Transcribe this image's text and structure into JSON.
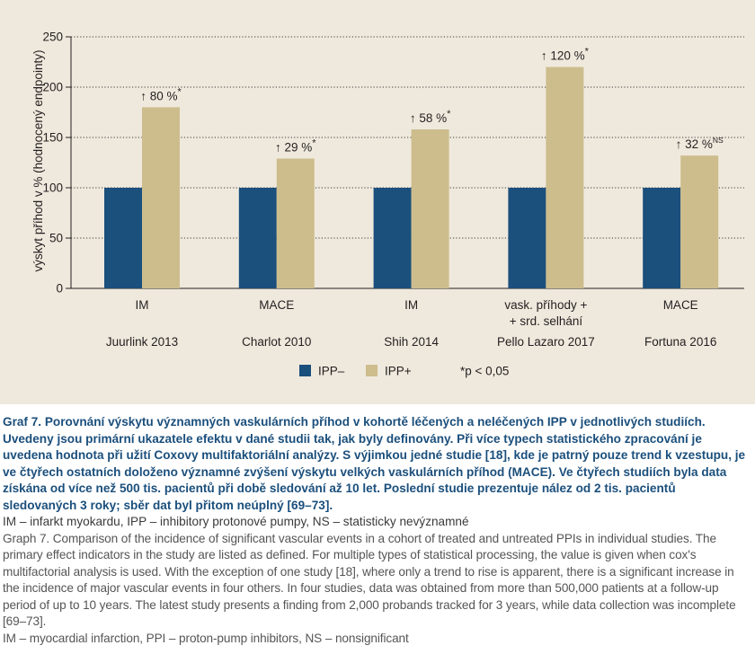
{
  "chart_data": {
    "type": "bar",
    "ylabel": "výskyt příhod v % (hodnocený endpointy)",
    "ylim": [
      0,
      250
    ],
    "yticks": [
      0,
      50,
      100,
      150,
      200,
      250
    ],
    "grid": true,
    "gridstyle": "dotted",
    "categories": [
      {
        "endpoint": [
          "IM"
        ],
        "study": "Juurlink 2013"
      },
      {
        "endpoint": [
          "MACE"
        ],
        "study": "Charlot 2010"
      },
      {
        "endpoint": [
          "IM"
        ],
        "study": "Shih 2014"
      },
      {
        "endpoint": [
          "vask. příhody +",
          "+ srd. selhání"
        ],
        "study": "Pello Lazaro 2017"
      },
      {
        "endpoint": [
          "MACE"
        ],
        "study": "Fortuna 2016"
      }
    ],
    "series": [
      {
        "name": "IPP–",
        "color": "#1b4f7c",
        "values": [
          100,
          100,
          100,
          100,
          100
        ]
      },
      {
        "name": "IPP+",
        "color": "#cdbd8d",
        "values": [
          180,
          129,
          158,
          220,
          132
        ]
      }
    ],
    "annotations": [
      {
        "text": "↑ 80 %",
        "sup": "*"
      },
      {
        "text": "↑ 29 %",
        "sup": "*"
      },
      {
        "text": "↑ 58 %",
        "sup": "*"
      },
      {
        "text": "↑ 120 %",
        "sup": "*"
      },
      {
        "text": "↑ 32 %",
        "sup": "NS"
      }
    ],
    "legend_note": "*p < 0,05",
    "legend_position": "bottom-center"
  },
  "caption": {
    "bold": "Graf 7. Porovnání výskytu významných vaskulárních příhod v kohortě léčených a neléčených IPP v jednotlivých studiích. Uvedeny jsou primární ukazatele efektu v dané studii tak, jak byly definovány. Při více typech statistického zpracování je uvedena hodnota při užití Coxovy multifaktoriální analýzy. S výjimkou jedné studie [18], kde je patrný pouze trend k vzestupu, je ve čtyřech ostatních doloženo významné zvýšení výskytu velkých vaskulárních příhod (MACE). Ve čtyřech studiích byla data získána od více než 500 tis. pacientů při době sledování až 10 let. Poslední studie prezentuje nález od 2 tis. pacientů sledovaných 3 roky; sběr dat byl přitom neúplný [69–73].",
    "abbrev_cz": "IM – infarkt myokardu, IPP – inhibitory protonové pumpy, NS – statisticky nevýznamné",
    "english": "Graph 7. Comparison of the incidence of significant vascular events in a cohort of treated and untreated PPIs in individual studies. The primary effect indicators in the study are listed as defined. For multiple types of statistical processing, the value is given when cox's multifactorial analysis is used. With the exception of one study [18], where only a trend to rise is apparent, there is a significant increase in the incidence of major vascular events in four others. In four studies, data was obtained from more than 500,000 patients at a follow-up period of up to 10 years. The latest study presents a finding from 2,000 probands tracked for 3 years, while data collection was incomplete [69–73].",
    "abbrev_en": "IM – myocardial infarction, PPI – proton-pump inhibitors, NS – nonsignificant"
  }
}
